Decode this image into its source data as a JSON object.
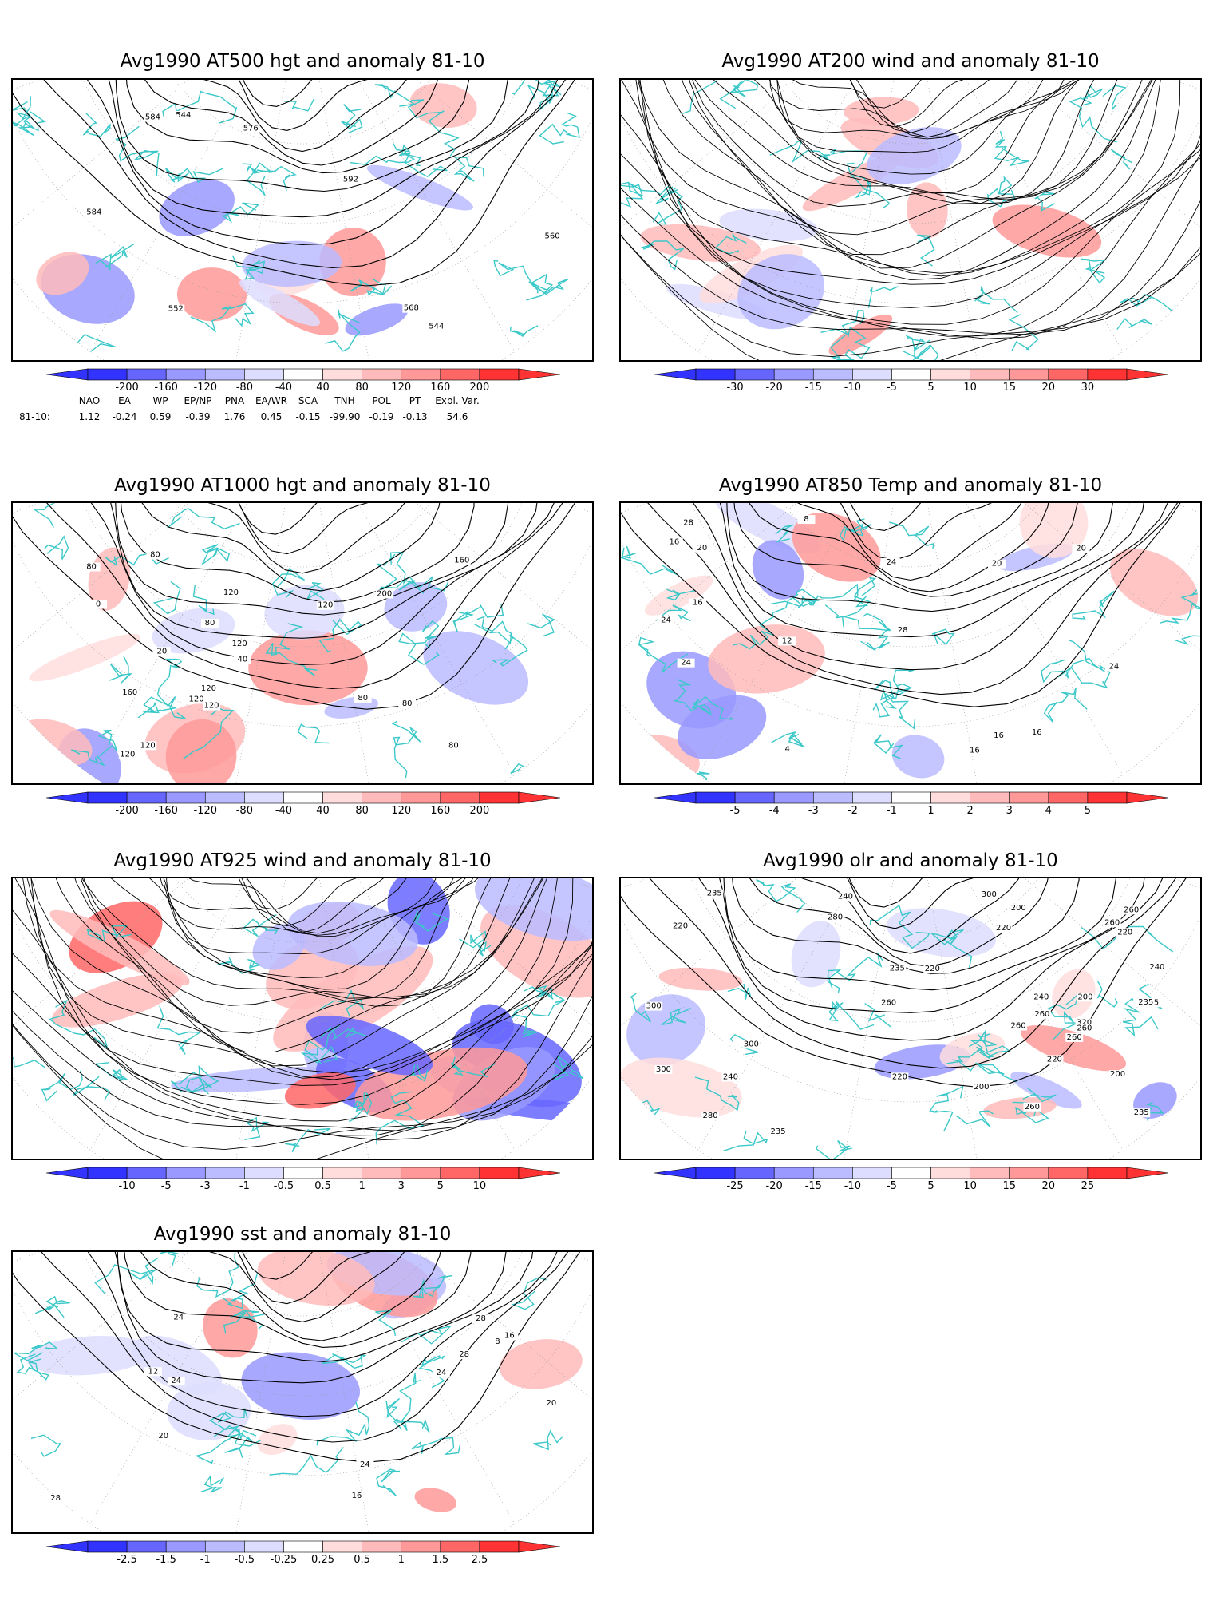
{
  "panels": [
    {
      "id": "p1",
      "title": "Avg1990 AT500 hgt and anomaly 81-10",
      "kind": "contour",
      "colorbar": [
        "-200",
        "-160",
        "-120",
        "-80",
        "-40",
        "40",
        "80",
        "120",
        "160",
        "200"
      ],
      "contour_labels": [
        "544",
        "544",
        "552",
        "560",
        "568",
        "576",
        "584",
        "592",
        "584"
      ]
    },
    {
      "id": "p2",
      "title": "Avg1990 AT200 wind and anomaly 81-10",
      "kind": "stream",
      "colorbar": [
        "-30",
        "-20",
        "-15",
        "-10",
        "-5",
        "5",
        "10",
        "15",
        "20",
        "30"
      ],
      "contour_labels": []
    },
    {
      "id": "p3",
      "title": "Avg1990 AT1000 hgt and anomaly 81-10",
      "kind": "contour",
      "colorbar": [
        "-200",
        "-160",
        "-120",
        "-80",
        "-40",
        "40",
        "80",
        "120",
        "160",
        "200"
      ],
      "contour_labels": [
        "120",
        "120",
        "80",
        "80",
        "120",
        "120",
        "80",
        "120",
        "0",
        "40",
        "160",
        "200",
        "160",
        "120",
        "80",
        "120",
        "80",
        "80",
        "120",
        "20"
      ]
    },
    {
      "id": "p4",
      "title": "Avg1990 AT850 Temp and anomaly 81-10",
      "kind": "contour",
      "colorbar": [
        "-5",
        "-4",
        "-3",
        "-2",
        "-1",
        "1",
        "2",
        "3",
        "4",
        "5"
      ],
      "contour_labels": [
        "20",
        "24",
        "24",
        "4",
        "8",
        "12",
        "16",
        "16",
        "20",
        "24",
        "28",
        "16",
        "16",
        "28",
        "24",
        "20",
        "16"
      ]
    },
    {
      "id": "p5",
      "title": "Avg1990 AT925 wind and anomaly 81-10",
      "kind": "stream",
      "colorbar": [
        "-10",
        "-5",
        "-3",
        "-1",
        "-0.5",
        "0.5",
        "1",
        "3",
        "5",
        "10"
      ],
      "contour_labels": []
    },
    {
      "id": "p6",
      "title": "Avg1990 olr and anomaly 81-10",
      "kind": "contour",
      "colorbar": [
        "-25",
        "-20",
        "-15",
        "-10",
        "-5",
        "5",
        "10",
        "15",
        "20",
        "25"
      ],
      "contour_labels": [
        "200",
        "220",
        "200",
        "235",
        "260",
        "260",
        "235",
        "240",
        "220",
        "235",
        "220",
        "200",
        "240",
        "260",
        "300",
        "300",
        "320",
        "260",
        "240",
        "260",
        "280",
        "300",
        "235",
        "300",
        "280",
        "260",
        "220",
        "235",
        "260",
        "240",
        "220",
        "200",
        "235",
        "220",
        "260"
      ]
    },
    {
      "id": "p7",
      "title": "Avg1990 sst and anomaly 81-10",
      "kind": "contour",
      "colorbar": [
        "-2.5",
        "-1.5",
        "-1",
        "-0.5",
        "-0.25",
        "0.25",
        "0.5",
        "1",
        "1.5",
        "2.5"
      ],
      "contour_labels": [
        "28",
        "24",
        "20",
        "8",
        "12",
        "16",
        "16",
        "20",
        "24",
        "24",
        "28",
        "28",
        "24"
      ]
    }
  ],
  "indices": {
    "headers": [
      "NAO",
      "EA",
      "WP",
      "EP/NP",
      "PNA",
      "EA/WR",
      "SCA",
      "TNH",
      "POL",
      "PT",
      "Expl. Var."
    ],
    "row_label": "81-10:",
    "values": [
      "1.12",
      "-0.24",
      "0.59",
      "-0.39",
      "1.76",
      "0.45",
      "-0.15",
      "-99.90",
      "-0.19",
      "-0.13",
      "54.6"
    ]
  },
  "colors": {
    "coast": "#3cc8c8",
    "contour": "#000000",
    "neg": [
      "#3333ff",
      "#6666ff",
      "#9999ff",
      "#bbbbff",
      "#ddddff"
    ],
    "pos": [
      "#ffdddd",
      "#ffbbbb",
      "#ff9999",
      "#ff6666",
      "#ff3333"
    ]
  }
}
